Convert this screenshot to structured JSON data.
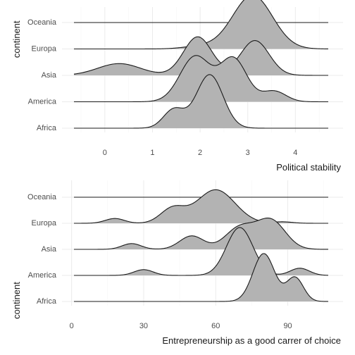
{
  "chart_data": [
    {
      "type": "ridgeline",
      "ylabel": "continent",
      "xlabel": "Political stability",
      "xlim": [
        -0.9,
        5.0
      ],
      "x_ticks": [
        0,
        1,
        2,
        3,
        4
      ],
      "grid": true,
      "fill_color": "#b3b3b3",
      "series": [
        {
          "name": "Africa",
          "components": [
            [
              2.2,
              0.28,
              1.0
            ],
            [
              1.45,
              0.22,
              0.35
            ]
          ]
        },
        {
          "name": "America",
          "components": [
            [
              1.9,
              0.32,
              0.85
            ],
            [
              2.7,
              0.28,
              0.8
            ],
            [
              3.55,
              0.25,
              0.2
            ]
          ]
        },
        {
          "name": "Asia",
          "components": [
            [
              0.3,
              0.45,
              0.22
            ],
            [
              1.95,
              0.3,
              0.72
            ],
            [
              3.15,
              0.3,
              0.65
            ]
          ]
        },
        {
          "name": "Europa",
          "components": [
            [
              3.1,
              0.42,
              1.0
            ],
            [
              2.0,
              0.35,
              0.05
            ]
          ]
        },
        {
          "name": "Oceania",
          "components": []
        }
      ]
    },
    {
      "type": "ridgeline",
      "ylabel": "continent",
      "xlabel": "Entrepreneurship as a good carrer of choice",
      "xlim": [
        -4,
        113
      ],
      "x_ticks": [
        0,
        30,
        60,
        90
      ],
      "grid": true,
      "fill_color": "#b3b3b3",
      "series": [
        {
          "name": "Africa",
          "components": [
            [
              80,
              4.5,
              1.0
            ],
            [
              93,
              3.5,
              0.5
            ]
          ]
        },
        {
          "name": "America",
          "components": [
            [
              30,
              4,
              0.12
            ],
            [
              70,
              5.5,
              1.0
            ],
            [
              95,
              4,
              0.15
            ]
          ]
        },
        {
          "name": "Asia",
          "components": [
            [
              25,
              4,
              0.12
            ],
            [
              50,
              5,
              0.28
            ],
            [
              70,
              6,
              0.45
            ],
            [
              83,
              6,
              0.6
            ]
          ]
        },
        {
          "name": "Europa",
          "components": [
            [
              18,
              4,
              0.1
            ],
            [
              42,
              5,
              0.3
            ],
            [
              60,
              8,
              0.7
            ],
            [
              88,
              4,
              0.03
            ]
          ]
        },
        {
          "name": "Oceania",
          "components": []
        }
      ]
    }
  ]
}
